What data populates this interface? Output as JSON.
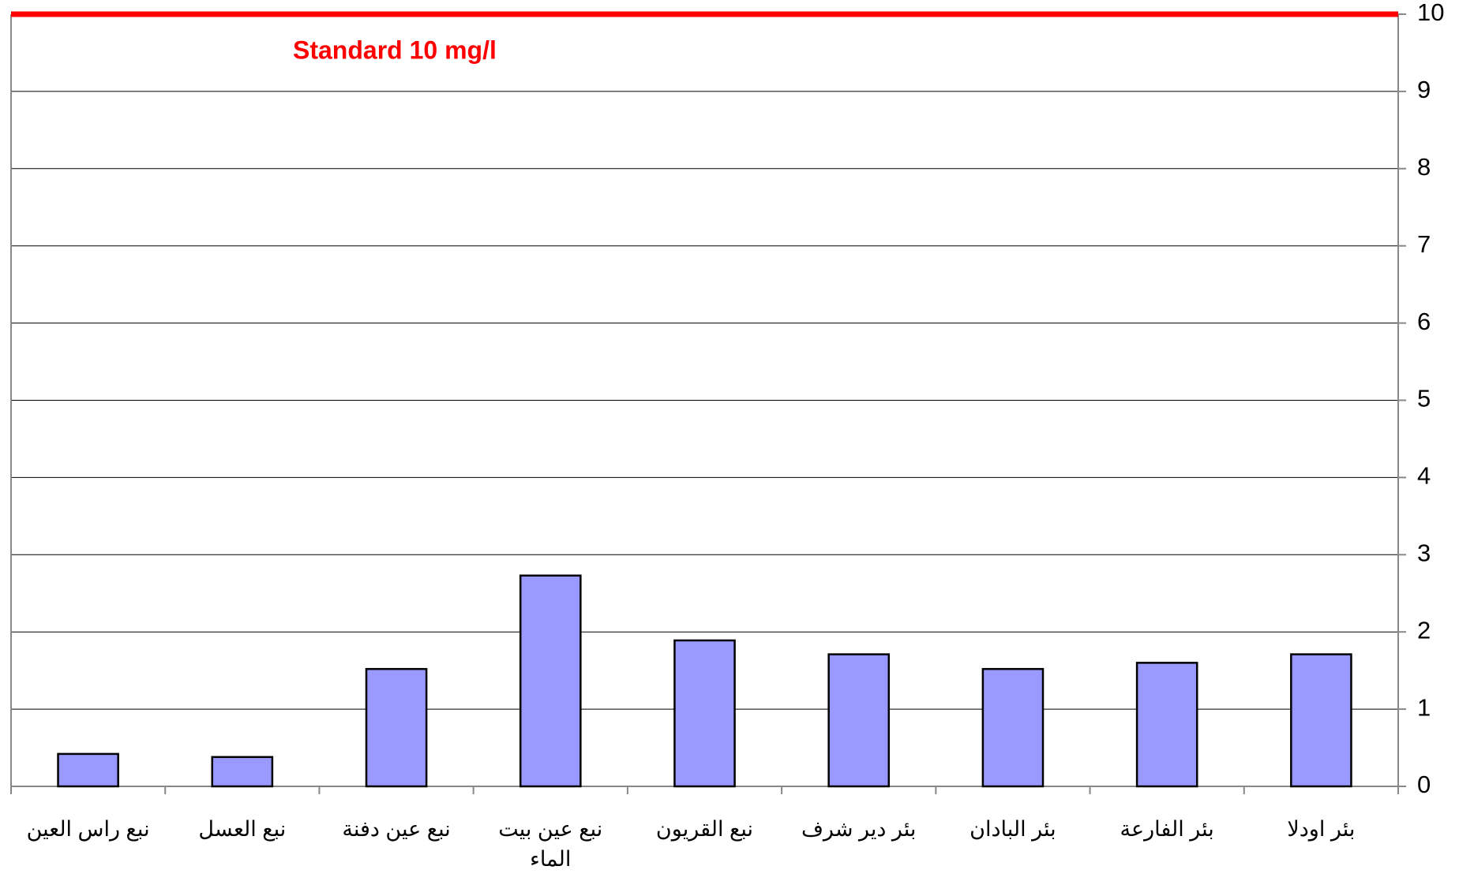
{
  "chart_data": {
    "type": "bar",
    "annotation": "Standard 10 mg/l",
    "categories": [
      "نبع راس العين",
      "نبع العسل",
      "نبع عين دفنة",
      "نبع عين بيت الماء",
      "نبع القريون",
      "بئر دير شرف",
      "بئر البادان",
      "بئر الفارعة",
      "بئر اودلا"
    ],
    "values": [
      0.42,
      0.38,
      1.52,
      2.73,
      1.89,
      1.71,
      1.52,
      1.6,
      1.71
    ],
    "color": "#9999ff",
    "ylim": [
      0,
      10
    ],
    "yticks": [
      0,
      1,
      2,
      3,
      4,
      5,
      6,
      7,
      8,
      9,
      10
    ],
    "y_axis_side": "right",
    "grid": true,
    "reference_line": {
      "value": 10,
      "color": "#ff0000"
    }
  }
}
